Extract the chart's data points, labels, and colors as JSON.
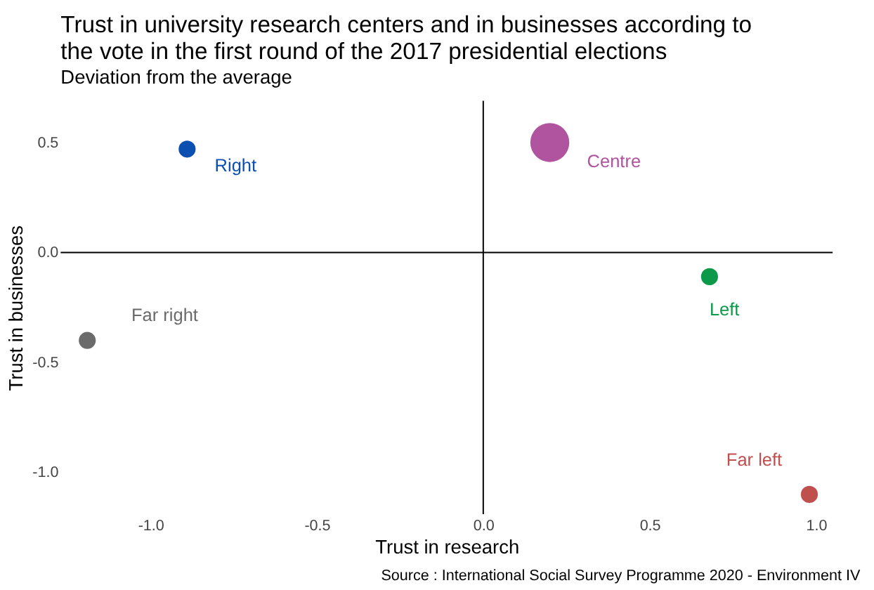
{
  "chart_data": {
    "type": "bubble",
    "title": "Trust in university research centers and in businesses according to\n the vote in the first round of the 2017 presidential elections",
    "subtitle": "Deviation from the average",
    "xlabel": "Trust in research",
    "ylabel": "Trust in businesses",
    "series": [
      {
        "name": "Far right",
        "color": "#6b6b6b",
        "x": [
          -1.19
        ],
        "values": [
          -0.4
        ],
        "sizes": [
          0.19
        ]
      },
      {
        "name": "Right",
        "color": "#0b4fb0",
        "x": [
          -0.89
        ],
        "values": [
          0.47
        ],
        "sizes": [
          0.19
        ]
      },
      {
        "name": "Centre",
        "color": "#b0549f",
        "x": [
          0.2
        ],
        "values": [
          0.5
        ],
        "sizes": [
          1
        ]
      },
      {
        "name": "Left",
        "color": "#0c9a4a",
        "x": [
          0.68
        ],
        "values": [
          -0.11
        ],
        "sizes": [
          0.19
        ]
      },
      {
        "name": "Far left",
        "color": "#c0504d",
        "x": [
          0.98
        ],
        "values": [
          -1.1
        ],
        "sizes": [
          0.19
        ]
      }
    ],
    "xlim": [
      -1.27,
      1.05
    ],
    "ylim": [
      -1.19,
      0.69
    ],
    "xticks": [
      {
        "value": -1,
        "label": "-1.0"
      },
      {
        "value": -0.5,
        "label": "-0.5"
      },
      {
        "value": 0,
        "label": "0.0"
      },
      0.5,
      {
        "value": 1,
        "label": "1.0"
      }
    ],
    "yticks": [
      0.5,
      {
        "value": 0,
        "label": "0.0"
      },
      {
        "value": -0.5,
        "label": "-0.5"
      },
      {
        "value": -1,
        "label": "-1.0"
      }
    ],
    "ref_lines": [
      {
        "axis": "x",
        "value": 0,
        "color": "#000000"
      },
      {
        "axis": "y",
        "value": 0,
        "color": "#000000"
      }
    ],
    "grid": false,
    "legend": false,
    "annotations": [
      "Source : International Social Survey Programme 2020 - Environment IV"
    ]
  }
}
